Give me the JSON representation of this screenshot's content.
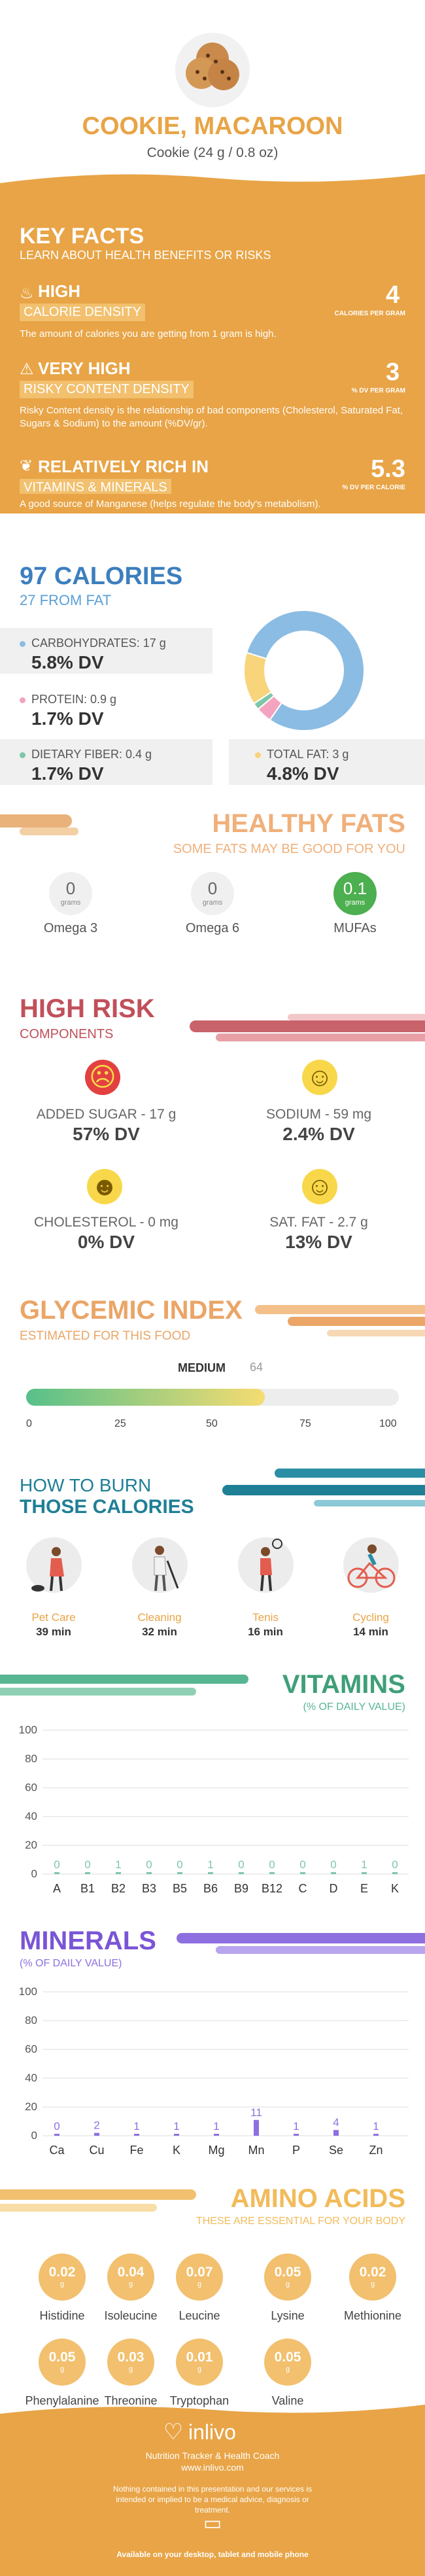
{
  "header": {
    "title": "COOKIE, MACAROON",
    "subtitle": "Cookie (24 g / 0.8 oz)"
  },
  "key_facts": {
    "title": "KEY FACTS",
    "subtitle": "LEARN ABOUT HEALTH BENEFITS OR RISKS",
    "items": [
      {
        "level": "HIGH",
        "label": "CALORIE DENSITY",
        "value": "4",
        "unit": "CALORIES PER GRAM",
        "desc": "The amount of calories you are getting from 1 gram is high.",
        "icon": "fire-icon"
      },
      {
        "level": "VERY HIGH",
        "label": "RISKY CONTENT DENSITY",
        "value": "3",
        "unit": "% DV PER GRAM",
        "desc": "Risky Content density is the relationship of bad components (Cholesterol, Saturated Fat, Sugars & Sodium) to the amount (%DV/gr).",
        "icon": "warning-icon"
      },
      {
        "level": "RELATIVELY RICH IN",
        "label": "VITAMINS & MINERALS",
        "value": "5.3",
        "unit": "% DV PER CALORIE",
        "desc": "A good source of Manganese (helps regulate the body's metabolism).",
        "icon": "leaf-icon"
      }
    ]
  },
  "calories": {
    "title": "97 CALORIES",
    "subtitle": "27 FROM FAT",
    "items": [
      {
        "label": "CARBOHYDRATES: 17 g",
        "dv": "5.8% DV",
        "color": "#8bbce3"
      },
      {
        "label": "PROTEIN: 0.9 g",
        "dv": "1.7% DV",
        "color": "#f3a3c0"
      },
      {
        "label": "DIETARY FIBER: 0.4 g",
        "dv": "1.7% DV",
        "color": "#7ec6a8"
      },
      {
        "label": "TOTAL FAT: 3 g",
        "dv": "4.8% DV",
        "color": "#f8d47a"
      }
    ],
    "chart_data": {
      "type": "pie",
      "values": [
        17,
        0.9,
        0.4,
        3
      ],
      "colors": [
        "#8bbce3",
        "#f3a3c0",
        "#7ec6a8",
        "#f8d47a"
      ]
    }
  },
  "fats": {
    "title": "HEALTHY FATS",
    "subtitle": "SOME FATS MAY BE GOOD FOR YOU",
    "items": [
      {
        "value": "0",
        "unit": "grams",
        "name": "Omega 3"
      },
      {
        "value": "0",
        "unit": "grams",
        "name": "Omega 6"
      },
      {
        "value": "0.1",
        "unit": "grams",
        "name": "MUFAs"
      }
    ]
  },
  "risk": {
    "title": "HIGH RISK",
    "subtitle": "COMPONENTS",
    "items": [
      {
        "label": "ADDED SUGAR - 17 g",
        "dv": "57% DV",
        "face": "sad"
      },
      {
        "label": "SODIUM - 59 mg",
        "dv": "2.4% DV",
        "face": "happy"
      },
      {
        "label": "CHOLESTEROL - 0 mg",
        "dv": "0% DV",
        "face": "grin"
      },
      {
        "label": "SAT. FAT - 2.7 g",
        "dv": "13% DV",
        "face": "happy"
      }
    ]
  },
  "gi": {
    "title": "GLYCEMIC INDEX",
    "subtitle": "ESTIMATED FOR THIS FOOD",
    "level": "MEDIUM",
    "value": "64",
    "fraction": 0.64,
    "ticks": [
      "0",
      "25",
      "50",
      "75",
      "100"
    ]
  },
  "burn": {
    "title1": "HOW TO BURN",
    "title2": "THOSE CALORIES",
    "items": [
      {
        "name": "Pet Care",
        "time": "39 min"
      },
      {
        "name": "Cleaning",
        "time": "32 min"
      },
      {
        "name": "Tenis",
        "time": "16 min"
      },
      {
        "name": "Cycling",
        "time": "14 min"
      }
    ]
  },
  "vitamins": {
    "title": "VITAMINS",
    "subtitle": "(% OF DAILY VALUE)",
    "chart_data": {
      "type": "bar",
      "categories": [
        "A",
        "B1",
        "B2",
        "B3",
        "B5",
        "B6",
        "B9",
        "B12",
        "C",
        "D",
        "E",
        "K"
      ],
      "values": [
        0,
        0,
        1,
        0,
        0,
        1,
        0,
        0,
        0,
        0,
        1,
        0
      ],
      "labels": [
        "0",
        "0",
        "1",
        "0",
        "0",
        "1",
        "0",
        "0",
        "0",
        "0",
        "1",
        "0"
      ],
      "ylim": [
        0,
        100
      ],
      "yticks": [
        "0",
        "20",
        "40",
        "60",
        "80",
        "100"
      ],
      "color": "#7ec6a8"
    }
  },
  "minerals": {
    "title": "MINERALS",
    "subtitle": "(% OF DAILY VALUE)",
    "chart_data": {
      "type": "bar",
      "categories": [
        "Ca",
        "Cu",
        "Fe",
        "K",
        "Mg",
        "Mn",
        "P",
        "Se",
        "Zn"
      ],
      "values": [
        0,
        2,
        1,
        1,
        1,
        11,
        1,
        4,
        1
      ],
      "labels": [
        "0",
        "2",
        "1",
        "1",
        "1",
        "11",
        "1",
        "4",
        "1"
      ],
      "ylim": [
        0,
        100
      ],
      "yticks": [
        "0",
        "20",
        "40",
        "60",
        "80",
        "100"
      ],
      "color": "#8e6fe0"
    }
  },
  "amino": {
    "title": "AMINO ACIDS",
    "subtitle": "THESE ARE ESSENTIAL FOR YOUR BODY",
    "unit": "g",
    "items": [
      {
        "v": "0.02",
        "n": "Histidine"
      },
      {
        "v": "0.04",
        "n": "Isoleucine"
      },
      {
        "v": "0.07",
        "n": "Leucine"
      },
      {
        "v": "0.05",
        "n": "Lysine"
      },
      {
        "v": "0.02",
        "n": "Methionine"
      },
      {
        "v": "0.05",
        "n": "Phenylalanine"
      },
      {
        "v": "0.03",
        "n": "Threonine"
      },
      {
        "v": "0.01",
        "n": "Tryptophan"
      },
      {
        "v": "0.05",
        "n": "Valine"
      }
    ]
  },
  "footer": {
    "brand": "inlivo",
    "tagline": "Nutrition Tracker & Health Coach",
    "url": "www.inlivo.com",
    "disclaimer": "Nothing contained in this presentation and our services is intended or implied to be a medical advice, diagnosis or treatment.",
    "available": "Available on your desktop, tablet and mobile phone"
  }
}
